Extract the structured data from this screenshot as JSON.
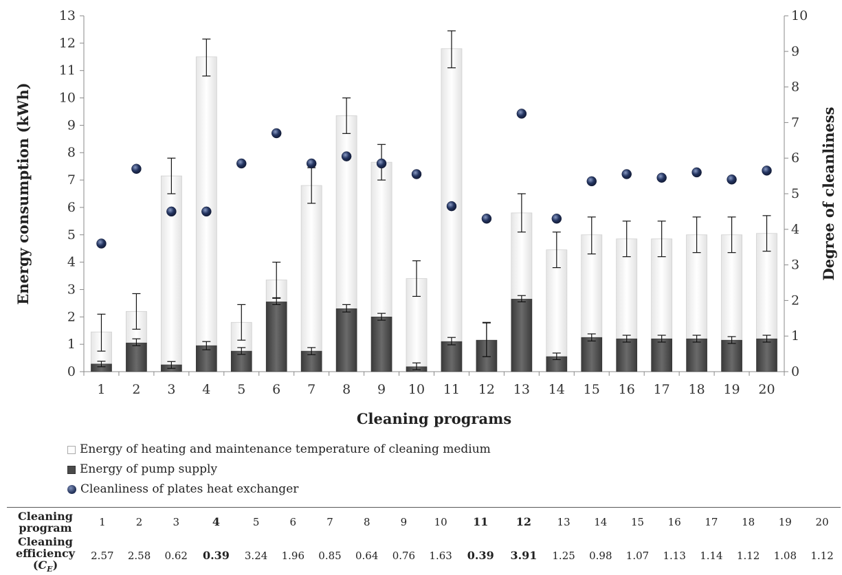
{
  "chart_data": {
    "type": "bar",
    "xlabel": "Cleaning programs",
    "ylabel": "Energy consumption (kWh)",
    "y2label": "Degree of cleanliness",
    "ylim": [
      0,
      13
    ],
    "y2lim": [
      0,
      10
    ],
    "yticks": [
      "0",
      "1",
      "2",
      "3",
      "4",
      "5",
      "6",
      "7",
      "8",
      "9",
      "10",
      "11",
      "12",
      "13"
    ],
    "y2ticks": [
      "0",
      "1",
      "2",
      "3",
      "4",
      "5",
      "6",
      "7",
      "8",
      "9",
      "10"
    ],
    "categories": [
      "1",
      "2",
      "3",
      "4",
      "5",
      "6",
      "7",
      "8",
      "9",
      "10",
      "11",
      "12",
      "13",
      "14",
      "15",
      "16",
      "17",
      "18",
      "19",
      "20"
    ],
    "series": [
      {
        "name": "Energy of heating and maintenance temperature of cleaning medium",
        "kind": "bar-total",
        "values": [
          1.45,
          2.2,
          7.15,
          11.5,
          1.8,
          3.35,
          6.8,
          9.35,
          7.65,
          3.4,
          11.8,
          1.15,
          5.8,
          4.45,
          5.0,
          4.85,
          4.85,
          5.0,
          5.0,
          5.05
        ],
        "error_low": [
          0.75,
          1.55,
          6.5,
          10.8,
          1.15,
          2.7,
          6.15,
          8.7,
          7.0,
          2.75,
          11.1,
          0.55,
          5.1,
          3.8,
          4.3,
          4.2,
          4.2,
          4.35,
          4.35,
          4.4
        ],
        "error_high": [
          2.1,
          2.85,
          7.8,
          12.15,
          2.45,
          4.0,
          7.45,
          10.0,
          8.3,
          4.05,
          12.45,
          1.8,
          6.5,
          5.1,
          5.65,
          5.5,
          5.5,
          5.65,
          5.65,
          5.7
        ]
      },
      {
        "name": "Energy of pump supply",
        "kind": "bar-base",
        "values": [
          0.28,
          1.05,
          0.25,
          0.95,
          0.75,
          2.55,
          0.75,
          2.3,
          2.0,
          0.18,
          1.1,
          1.15,
          2.65,
          0.55,
          1.25,
          1.2,
          1.2,
          1.2,
          1.15,
          1.2
        ],
        "error_low": [
          0.18,
          0.95,
          0.12,
          0.8,
          0.63,
          2.45,
          0.62,
          2.18,
          1.88,
          0.07,
          0.98,
          0.55,
          2.55,
          0.44,
          1.12,
          1.08,
          1.08,
          1.08,
          1.03,
          1.08
        ],
        "error_high": [
          0.38,
          1.2,
          0.37,
          1.1,
          0.88,
          2.68,
          0.88,
          2.45,
          2.13,
          0.32,
          1.25,
          1.78,
          2.78,
          0.68,
          1.38,
          1.33,
          1.33,
          1.33,
          1.28,
          1.33
        ]
      },
      {
        "name": "Cleanliness of plates heat exchanger",
        "kind": "dot-secondary",
        "values": [
          3.6,
          5.7,
          4.5,
          4.5,
          5.85,
          6.7,
          5.85,
          6.05,
          5.85,
          5.55,
          4.65,
          4.3,
          7.25,
          4.3,
          5.35,
          5.55,
          5.45,
          5.6,
          5.4,
          5.65
        ]
      }
    ],
    "legend": [
      {
        "label": "Energy of heating and maintenance temperature of cleaning medium",
        "swatch": "white-bar"
      },
      {
        "label": "Energy of pump supply",
        "swatch": "dark-bar"
      },
      {
        "label": "Cleanliness of plates heat exchanger",
        "swatch": "blue-dot"
      }
    ],
    "colors": {
      "heating_bar": "#fbfbfb",
      "pump_bar": "#4d4d4d",
      "dot": "#243561"
    }
  },
  "table": {
    "row1_label": "Cleaning program",
    "row2_label": "Cleaning efficiency (C_E)",
    "programs": [
      "1",
      "2",
      "3",
      "4",
      "5",
      "6",
      "7",
      "8",
      "9",
      "10",
      "11",
      "12",
      "13",
      "14",
      "15",
      "16",
      "17",
      "18",
      "19",
      "20"
    ],
    "efficiency": [
      "2.57",
      "2.58",
      "0.62",
      "0.39",
      "3.24",
      "1.96",
      "0.85",
      "0.64",
      "0.76",
      "1.63",
      "0.39",
      "3.91",
      "1.25",
      "0.98",
      "1.07",
      "1.13",
      "1.14",
      "1.12",
      "1.08",
      "1.12"
    ],
    "bold_programs": [
      "4",
      "11",
      "12"
    ]
  }
}
